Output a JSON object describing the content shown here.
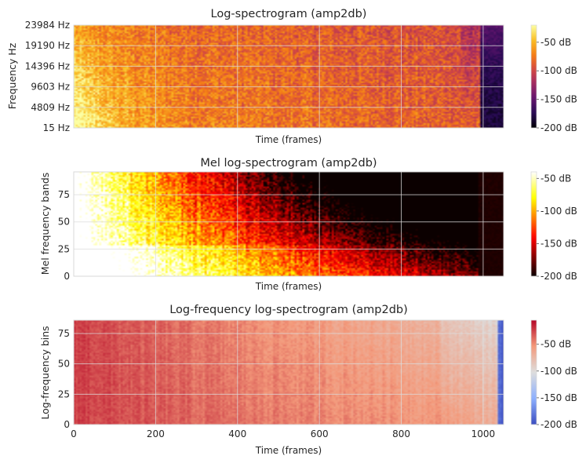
{
  "chart_data": [
    {
      "type": "heatmap",
      "title": "Log-spectrogram (amp2db)",
      "xlabel": "Time (frames)",
      "ylabel": "Frequency Hz",
      "colormap": "inferno",
      "xlim": [
        0,
        1050
      ],
      "ylim": [
        0,
        1
      ],
      "y_ticks": [
        {
          "pos": 0.0,
          "label": "15 Hz"
        },
        {
          "pos": 0.2,
          "label": "4809 Hz"
        },
        {
          "pos": 0.4,
          "label": "9603 Hz"
        },
        {
          "pos": 0.6,
          "label": "14396 Hz"
        },
        {
          "pos": 0.8,
          "label": "19190 Hz"
        },
        {
          "pos": 1.0,
          "label": "23984 Hz"
        }
      ],
      "colorbar": {
        "range": [
          -200,
          -20
        ],
        "ticks": [
          {
            "value": -50,
            "label": "-50 dB"
          },
          {
            "value": -100,
            "label": "-100 dB"
          },
          {
            "value": -150,
            "label": "-150 dB"
          },
          {
            "value": -200,
            "label": "-200 dB"
          }
        ]
      }
    },
    {
      "type": "heatmap",
      "title": "Mel log-spectrogram (amp2db)",
      "xlabel": "Time (frames)",
      "ylabel": "Mel frequency bands",
      "colormap": "hot",
      "xlim": [
        0,
        1050
      ],
      "ylim": [
        0,
        96
      ],
      "y_ticks": [
        {
          "pos": 0,
          "label": "0"
        },
        {
          "pos": 25,
          "label": "25"
        },
        {
          "pos": 50,
          "label": "50"
        },
        {
          "pos": 75,
          "label": "75"
        }
      ],
      "colorbar": {
        "range": [
          -200,
          -40
        ],
        "ticks": [
          {
            "value": -50,
            "label": "-50 dB"
          },
          {
            "value": -100,
            "label": "-100 dB"
          },
          {
            "value": -150,
            "label": "-150 dB"
          },
          {
            "value": -200,
            "label": "-200 dB"
          }
        ]
      }
    },
    {
      "type": "heatmap",
      "title": "Log-frequency log-spectrogram (amp2db)",
      "xlabel": "Time (frames)",
      "ylabel": "Log-frequency bins",
      "colormap": "coolwarm",
      "xlim": [
        0,
        1050
      ],
      "ylim": [
        0,
        86
      ],
      "x_ticks": [
        {
          "value": 0,
          "label": "0"
        },
        {
          "value": 200,
          "label": "200"
        },
        {
          "value": 400,
          "label": "400"
        },
        {
          "value": 600,
          "label": "600"
        },
        {
          "value": 800,
          "label": "800"
        },
        {
          "value": 1000,
          "label": "1000"
        }
      ],
      "y_ticks": [
        {
          "pos": 0,
          "label": "0"
        },
        {
          "pos": 25,
          "label": "25"
        },
        {
          "pos": 50,
          "label": "50"
        },
        {
          "pos": 75,
          "label": "75"
        }
      ],
      "colorbar": {
        "range": [
          -200,
          -5
        ],
        "ticks": [
          {
            "value": -50,
            "label": "-50 dB"
          },
          {
            "value": -100,
            "label": "-100 dB"
          },
          {
            "value": -150,
            "label": "-150 dB"
          },
          {
            "value": -200,
            "label": "-200 dB"
          }
        ]
      }
    }
  ]
}
